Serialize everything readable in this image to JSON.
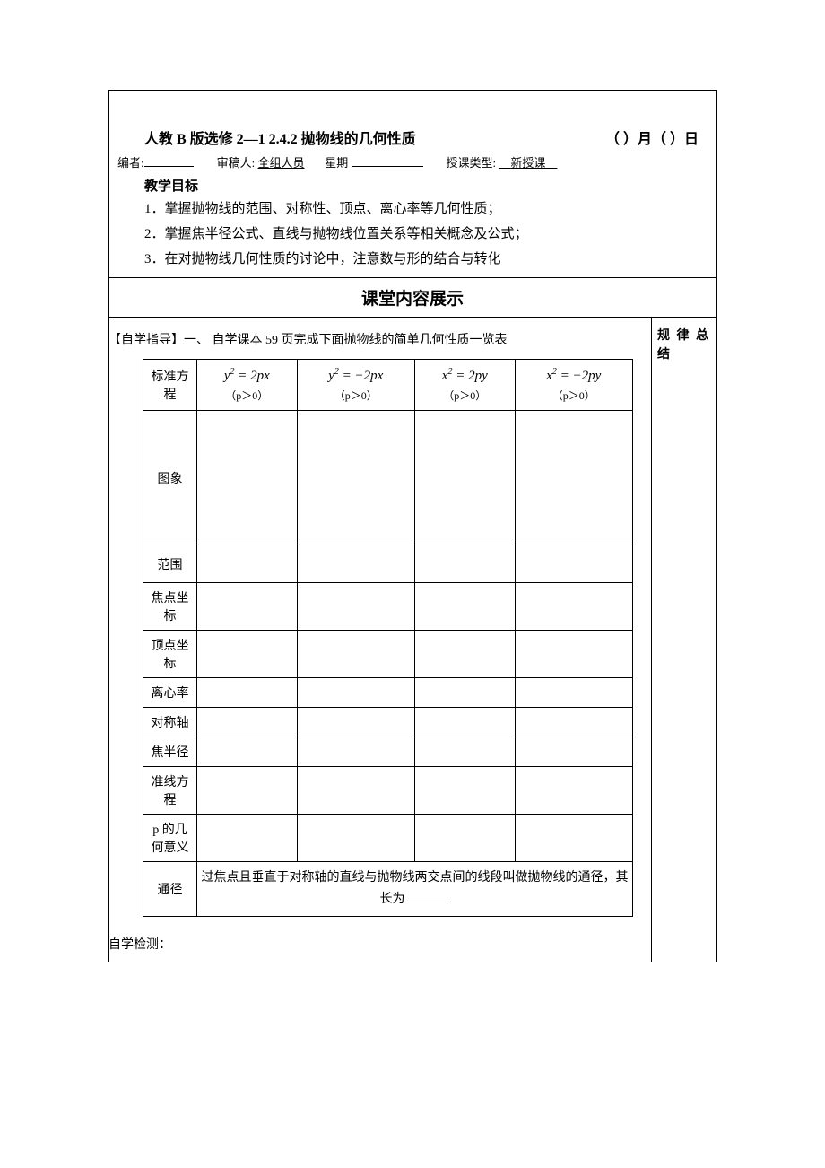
{
  "header": {
    "title_main": "人教 B 版选修 2—1 2.4.2 抛物线的几何性质",
    "title_date": "（  ）月（  ）日",
    "editor_label": "编者:",
    "reviewer_label": "审稿人:",
    "reviewer_value": "全组人员",
    "weekday_label": "星期",
    "class_type_label": "授课类型:",
    "class_type_value": "新授课"
  },
  "goals": {
    "title": "教学目标",
    "item1": "1．掌握抛物线的范围、对称性、顶点、离心率等几何性质；",
    "item2": "2．掌握焦半径公式、直线与抛物线位置关系等相关概念及公式；",
    "item3": "3．在对抛物线几何性质的讨论中，注意数与形的结合与转化"
  },
  "content": {
    "section_title": "课堂内容展示",
    "side_title": "规 律 总结",
    "intro": "【自学指导】一、 自学课本 59 页完成下面抛物线的简单几何性质一览表"
  },
  "table": {
    "row_labels": {
      "eq": "标准方程",
      "graph": "图象",
      "range": "范围",
      "focus": "焦点坐标",
      "vertex": "顶点坐标",
      "ecc": "离心率",
      "axis": "对称轴",
      "focal_radius": "焦半径",
      "directrix": "准线方程",
      "p_meaning": "p 的几何意义",
      "tongj": "通径"
    },
    "equations": {
      "e1_main": "y² = 2px",
      "e2_main": "y² = −2px",
      "e3_main": "x² = 2py",
      "e4_main": "x² = −2py",
      "p_cond": "（p＞0）"
    },
    "tongj_text": "过焦点且垂直于对称轴的直线与抛物线两交点间的线段叫做抛物线的通径，其长为"
  },
  "footer": {
    "self_test": "自学检测："
  }
}
